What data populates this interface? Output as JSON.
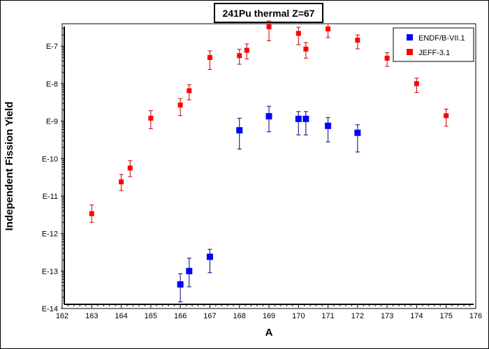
{
  "chart_data": {
    "type": "scatter",
    "title": "241Pu thermal Z=67",
    "xlabel": "A",
    "ylabel": "Independent Fission Yield",
    "xlim": [
      162,
      176
    ],
    "ylim_exp": [
      -14,
      -6.4
    ],
    "yscale": "log",
    "x_ticks": [
      "162",
      "163",
      "164",
      "165",
      "166",
      "167",
      "168",
      "169",
      "170",
      "171",
      "172",
      "173",
      "174",
      "175",
      "176"
    ],
    "y_ticks": [
      "E-14",
      "E-13",
      "E-12",
      "E-11",
      "E-10",
      "E-9",
      "E-8",
      "E-7"
    ],
    "legend_position": "top-right",
    "grid": false,
    "series": [
      {
        "name": "ENDF/B-VII.1",
        "color": "#0000ff",
        "error_color": "#000080",
        "points": [
          {
            "x": 166.0,
            "y": 4.4e-14,
            "ylo": 1.5e-14,
            "yhi": 8.5e-14
          },
          {
            "x": 166.3,
            "y": 1e-13,
            "ylo": 3.8e-14,
            "yhi": 2.2e-13
          },
          {
            "x": 167.0,
            "y": 2.4e-13,
            "ylo": 9e-14,
            "yhi": 3.8e-13
          },
          {
            "x": 168.0,
            "y": 5.7e-10,
            "ylo": 1.8e-10,
            "yhi": 1.2e-09
          },
          {
            "x": 169.0,
            "y": 1.35e-09,
            "ylo": 5.2e-10,
            "yhi": 2.5e-09
          },
          {
            "x": 170.0,
            "y": 1.15e-09,
            "ylo": 4.3e-10,
            "yhi": 1.8e-09
          },
          {
            "x": 170.25,
            "y": 1.15e-09,
            "ylo": 4.3e-10,
            "yhi": 1.8e-09
          },
          {
            "x": 171.0,
            "y": 7.5e-10,
            "ylo": 2.8e-10,
            "yhi": 1.25e-09
          },
          {
            "x": 172.0,
            "y": 4.9e-10,
            "ylo": 1.5e-10,
            "yhi": 8e-10
          }
        ]
      },
      {
        "name": "JEFF-3.1",
        "color": "#ff0000",
        "error_color": "#c00000",
        "points": [
          {
            "x": 163.0,
            "y": 3.4e-12,
            "ylo": 2e-12,
            "yhi": 5.8e-12
          },
          {
            "x": 164.0,
            "y": 2.4e-11,
            "ylo": 1.4e-11,
            "yhi": 3.8e-11
          },
          {
            "x": 164.3,
            "y": 5.6e-11,
            "ylo": 3.3e-11,
            "yhi": 8.8e-11
          },
          {
            "x": 165.0,
            "y": 1.2e-09,
            "ylo": 6.3e-10,
            "yhi": 1.9e-09
          },
          {
            "x": 166.0,
            "y": 2.7e-09,
            "ylo": 1.4e-09,
            "yhi": 4e-09
          },
          {
            "x": 166.3,
            "y": 6.5e-09,
            "ylo": 3.7e-09,
            "yhi": 9.4e-09
          },
          {
            "x": 167.0,
            "y": 5e-08,
            "ylo": 2.4e-08,
            "yhi": 7.5e-08
          },
          {
            "x": 168.0,
            "y": 5.6e-08,
            "ylo": 3.3e-08,
            "yhi": 8.3e-08
          },
          {
            "x": 168.25,
            "y": 7.8e-08,
            "ylo": 4.6e-08,
            "yhi": 1.15e-07
          },
          {
            "x": 169.0,
            "y": 3.3e-07,
            "ylo": 1.4e-07,
            "yhi": 4.7e-07
          },
          {
            "x": 170.0,
            "y": 2.2e-07,
            "ylo": 1.1e-07,
            "yhi": 3.2e-07
          },
          {
            "x": 170.25,
            "y": 8.4e-08,
            "ylo": 4.8e-08,
            "yhi": 1.25e-07
          },
          {
            "x": 171.0,
            "y": 2.9e-07,
            "ylo": 1.7e-07,
            "yhi": 4e-07
          },
          {
            "x": 172.0,
            "y": 1.45e-07,
            "ylo": 8.5e-08,
            "yhi": 2e-07
          },
          {
            "x": 173.0,
            "y": 4.8e-08,
            "ylo": 2.9e-08,
            "yhi": 6.7e-08
          },
          {
            "x": 174.0,
            "y": 1e-08,
            "ylo": 5.8e-09,
            "yhi": 1.4e-08
          },
          {
            "x": 175.0,
            "y": 1.4e-09,
            "ylo": 7.3e-10,
            "yhi": 2.1e-09
          }
        ]
      }
    ]
  }
}
